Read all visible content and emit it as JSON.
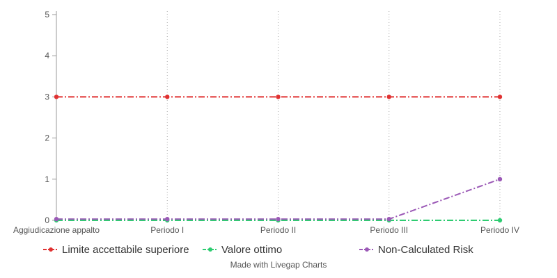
{
  "chart_data": {
    "type": "line",
    "categories": [
      "Aggiudicazione appalto",
      "Periodo I",
      "Periodo II",
      "Periodo III",
      "Periodo IV"
    ],
    "ylim": [
      0,
      5
    ],
    "yticks": [
      0,
      1,
      2,
      3,
      4,
      5
    ],
    "xgrid": "dotted",
    "legend_position": "bottom",
    "series": [
      {
        "name": "Limite accettabile superiore",
        "values": [
          3,
          3,
          3,
          3,
          3
        ],
        "color": "#e03131",
        "dash": "dash-dot"
      },
      {
        "name": "Valore ottimo",
        "values": [
          0,
          0,
          0,
          0,
          0
        ],
        "color": "#2ecc71",
        "dash": "dash-dot"
      },
      {
        "name": "Non-Calculated Risk",
        "values": [
          0.03,
          0.03,
          0.03,
          0.03,
          1
        ],
        "color": "#9b59b6",
        "dash": "dash-dot"
      }
    ]
  },
  "credit": "Made with Livegap Charts"
}
